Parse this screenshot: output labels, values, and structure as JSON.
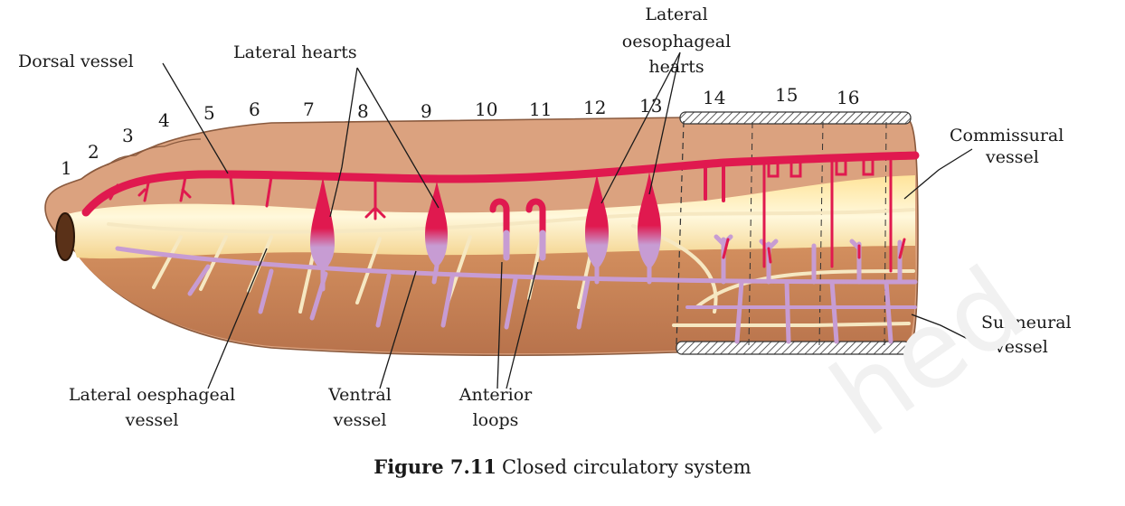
{
  "labels": {
    "dorsal_vessel": "Dorsal vessel",
    "lateral_hearts": "Lateral hearts",
    "lateral_oesophageal_hearts": [
      "Lateral",
      "oesophageal",
      "hearts"
    ],
    "commissural_vessel": [
      "Commissural",
      "vessel"
    ],
    "subneural_vessel": [
      "Subneural",
      "vessel"
    ],
    "lateral_oesphageal_vessel": [
      "Lateral oesphageal",
      "vessel"
    ],
    "ventral_vessel": [
      "Ventral",
      "vessel"
    ],
    "anterior_loops": [
      "Anterior",
      "loops"
    ]
  },
  "segments": [
    "1",
    "2",
    "3",
    "4",
    "5",
    "6",
    "7",
    "8",
    "9",
    "10",
    "11",
    "12",
    "13",
    "14",
    "15",
    "16"
  ],
  "caption": {
    "figure": "Figure 7.11",
    "text": "Closed circulatory system"
  },
  "watermark": "hed",
  "colors": {
    "body_outer": "#dba27f",
    "body_inner": "#fff4c9",
    "body_lower": "#c8835a",
    "dorsal_vessel": "#e0194f",
    "ventral_vessel": "#c79cd3",
    "lateral_vessel": "#f6e8c2"
  }
}
